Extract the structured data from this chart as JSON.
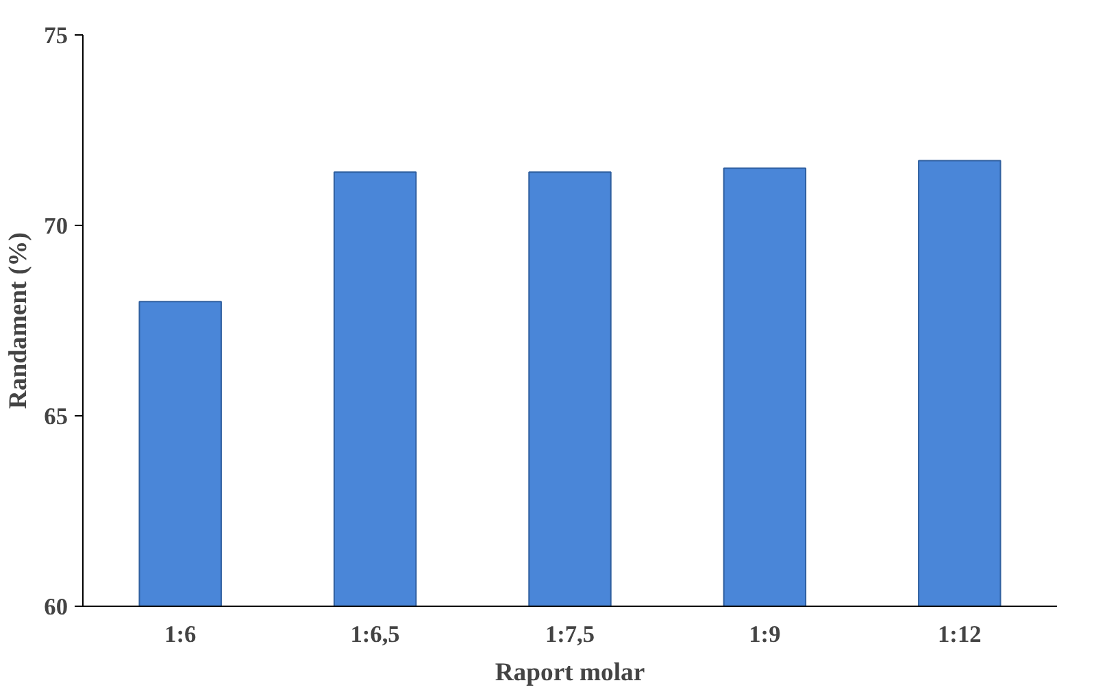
{
  "chart_data": {
    "type": "bar",
    "xlabel": "Raport molar",
    "ylabel": "Randament (%)",
    "categories": [
      "1:6",
      "1:6,5",
      "1:7,5",
      "1:9",
      "1:12"
    ],
    "values": [
      68,
      71.4,
      71.4,
      71.5,
      71.7
    ],
    "color": "#4a86d8",
    "ylim": [
      60,
      75
    ],
    "yticks": [
      60,
      65,
      70,
      75
    ],
    "grid": false
  }
}
